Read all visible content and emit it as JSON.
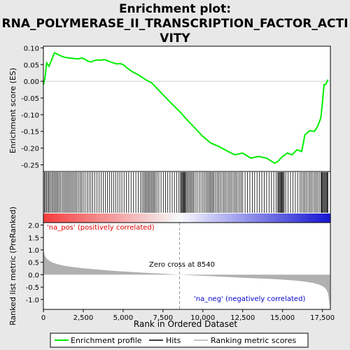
{
  "chart_data": {
    "type": "line",
    "title": "Enrichment plot: RNA_POLYMERASE_II_TRANSCRIPTION_FACTOR_ACTIVITY",
    "title_lines": [
      "Enrichment plot:",
      "RNA_POLYMERASE_II_TRANSCRIPTION_FACTOR_ACTI",
      "VITY"
    ],
    "xlabel": "Rank in Ordered Dataset",
    "xlim": [
      0,
      18000
    ],
    "x_ticks": [
      0,
      2500,
      5000,
      7500,
      10000,
      12500,
      15000,
      17500
    ],
    "x_tick_labels": [
      "0",
      "2,500",
      "5,000",
      "7,500",
      "10,000",
      "12,500",
      "15,000",
      "17,500"
    ],
    "top_panel": {
      "ylabel": "Enrichment score (ES)",
      "ylim": [
        -0.27,
        0.105
      ],
      "y_ticks": [
        0.1,
        0.05,
        0.0,
        -0.05,
        -0.1,
        -0.15,
        -0.2,
        -0.25
      ],
      "y_tick_labels": [
        "0.10",
        "0.05",
        "0.00",
        "-0.05",
        "-0.10",
        "-0.15",
        "-0.20",
        "-0.25"
      ],
      "series": {
        "name": "Enrichment profile",
        "color": "#00ee00",
        "x": [
          0,
          100,
          200,
          350,
          500,
          600,
          700,
          800,
          1000,
          1200,
          1400,
          1600,
          1800,
          2000,
          2200,
          2400,
          2600,
          2800,
          3000,
          3200,
          3400,
          3600,
          3800,
          4000,
          4200,
          4400,
          4600,
          4800,
          5000,
          5300,
          5600,
          6000,
          6400,
          6800,
          7200,
          7600,
          8000,
          8540,
          9000,
          9500,
          10000,
          10500,
          11000,
          11500,
          12000,
          12500,
          13000,
          13500,
          14000,
          14500,
          14700,
          15000,
          15300,
          15600,
          15900,
          16200,
          16400,
          16700,
          17000,
          17200,
          17400,
          17500,
          17600,
          17700,
          17850
        ],
        "y": [
          -0.01,
          0.01,
          0.055,
          0.045,
          0.062,
          0.075,
          0.085,
          0.083,
          0.078,
          0.074,
          0.071,
          0.07,
          0.069,
          0.068,
          0.067,
          0.07,
          0.066,
          0.06,
          0.058,
          0.062,
          0.064,
          0.063,
          0.065,
          0.062,
          0.058,
          0.055,
          0.052,
          0.053,
          0.05,
          0.038,
          0.028,
          0.018,
          0.005,
          -0.005,
          -0.025,
          -0.045,
          -0.065,
          -0.09,
          -0.115,
          -0.14,
          -0.165,
          -0.185,
          -0.195,
          -0.208,
          -0.22,
          -0.215,
          -0.23,
          -0.225,
          -0.23,
          -0.245,
          -0.24,
          -0.225,
          -0.215,
          -0.22,
          -0.205,
          -0.21,
          -0.16,
          -0.148,
          -0.15,
          -0.135,
          -0.11,
          -0.065,
          -0.01,
          -0.01,
          0.005
        ]
      }
    },
    "hits": {
      "name": "Hits",
      "color": "#000000",
      "x": [
        60,
        130,
        200,
        280,
        350,
        430,
        520,
        600,
        680,
        760,
        840,
        920,
        1010,
        1100,
        1200,
        1290,
        1380,
        1470,
        1560,
        1650,
        1740,
        1830,
        1920,
        2010,
        2100,
        2200,
        2300,
        2400,
        2500,
        2620,
        2740,
        2860,
        2980,
        3100,
        3230,
        3360,
        3490,
        3620,
        3750,
        3880,
        4010,
        4140,
        4270,
        4400,
        4530,
        4660,
        4790,
        4920,
        5060,
        5200,
        5350,
        5500,
        5650,
        5800,
        5950,
        6100,
        6200,
        6300,
        6380,
        6460,
        6540,
        6620,
        6700,
        6780,
        6860,
        6940,
        7020,
        7120,
        7240,
        7380,
        7520,
        7660,
        7800,
        7940,
        8080,
        8220,
        8360,
        8500,
        8600,
        8650,
        8700,
        8750,
        8800,
        8850,
        8900,
        8950,
        9020,
        9100,
        9180,
        9260,
        9340,
        9420,
        9520,
        9640,
        9760,
        9880,
        10000,
        10100,
        10200,
        10300,
        10380,
        10460,
        10540,
        10620,
        10700,
        10800,
        10900,
        11000,
        11100,
        11200,
        11300,
        11400,
        11500,
        11600,
        11700,
        11800,
        11900,
        12000,
        12100,
        12200,
        12300,
        12400,
        12500,
        12650,
        12800,
        12950,
        13100,
        13250,
        13400,
        13550,
        13700,
        13850,
        14000,
        14150,
        14300,
        14450,
        14600,
        14700,
        14750,
        14800,
        14850,
        14900,
        14950,
        15000,
        15050,
        15100,
        15200,
        15350,
        15500,
        15650,
        15800,
        15950,
        16100,
        16200,
        16300,
        16400,
        16500,
        16600,
        16700,
        16800,
        16900,
        17000,
        17100,
        17200,
        17300,
        17400,
        17450,
        17500,
        17550,
        17600,
        17650,
        17700,
        17750,
        17800,
        17850
      ]
    },
    "bottom_panel": {
      "ylabel": "Ranked list metric (PreRanked)",
      "ylim": [
        -1.4,
        2.1
      ],
      "y_ticks": [
        2.0,
        1.5,
        1.0,
        0.5,
        0.0,
        -0.5,
        -1.0
      ],
      "y_tick_labels": [
        "2.0",
        "1.5",
        "1.0",
        "0.5",
        "0.0",
        "-0.5",
        "-1.0"
      ],
      "series": {
        "name": "Ranking metric scores",
        "color": "#b0b0b0",
        "x": [
          0,
          30,
          80,
          150,
          250,
          400,
          600,
          900,
          1300,
          1800,
          2500,
          3500,
          4500,
          5500,
          6500,
          7500,
          8540,
          9500,
          10500,
          11500,
          12500,
          13500,
          14500,
          15500,
          16300,
          16900,
          17300,
          17600,
          17750,
          17850,
          17900,
          17960
        ],
        "y": [
          1.0,
          0.9,
          0.8,
          0.7,
          0.62,
          0.55,
          0.48,
          0.42,
          0.36,
          0.31,
          0.26,
          0.2,
          0.15,
          0.11,
          0.07,
          0.04,
          0.0,
          -0.03,
          -0.06,
          -0.09,
          -0.12,
          -0.15,
          -0.18,
          -0.22,
          -0.27,
          -0.33,
          -0.4,
          -0.5,
          -0.6,
          -0.75,
          -0.95,
          -1.25
        ]
      },
      "zero_cross_label": "Zero cross at 8540",
      "zero_cross": 8540,
      "pos_label": "'na_pos' (positively correlated)",
      "neg_label": "'na_neg' (negatively correlated)"
    },
    "legend": {
      "placement": "bottom",
      "entries": [
        "Enrichment profile",
        "Hits",
        "Ranking metric scores"
      ]
    },
    "colors": {
      "profile": "#00ee00",
      "pos_label": "#dd0000",
      "neg_label": "#0000cc",
      "metric_fill": "#b0b0b0"
    }
  }
}
